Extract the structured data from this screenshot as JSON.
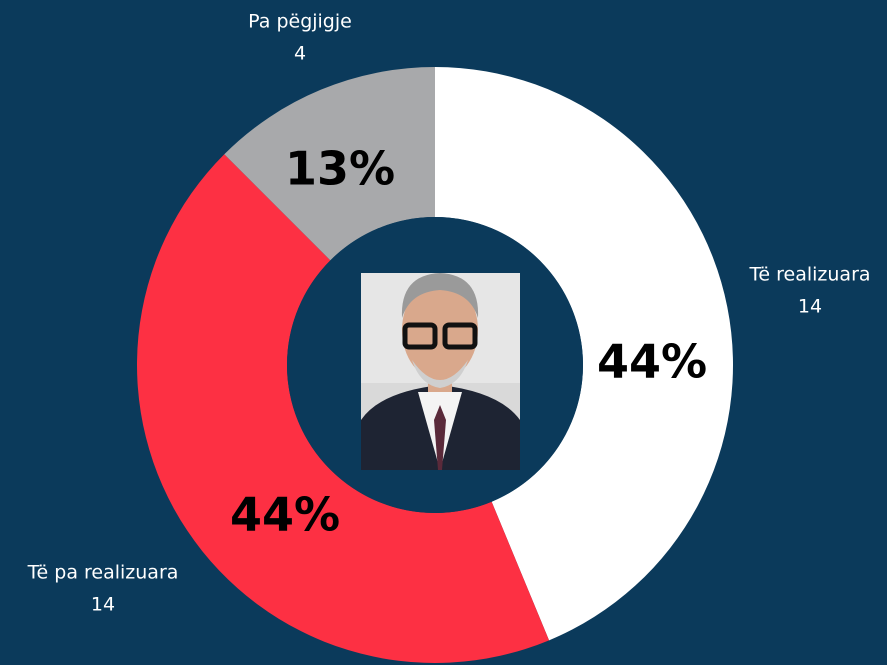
{
  "chart_data": {
    "type": "donut",
    "categories": [
      "Të realizuara",
      "Të pa realizuara",
      "Pa pëgjigje"
    ],
    "values": [
      14,
      14,
      4
    ],
    "percent_labels": [
      "44%",
      "44%",
      "13%"
    ],
    "colors": [
      "#ffffff",
      "#fd3043",
      "#a8a9ab"
    ]
  }
}
